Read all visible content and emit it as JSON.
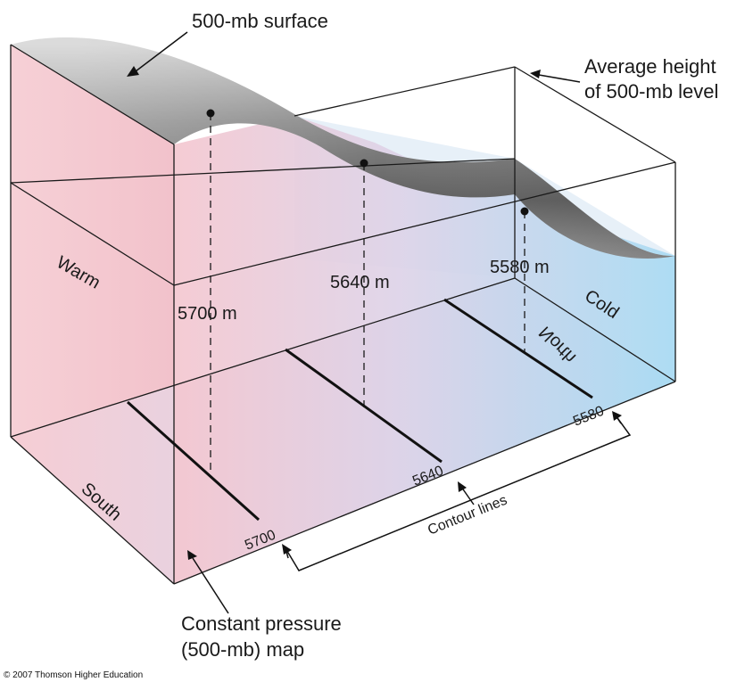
{
  "labels": {
    "surface": "500-mb surface",
    "avg_height_1": "Average height",
    "avg_height_2": "of 500-mb level",
    "map_1": "Constant pressure",
    "map_2": "(500-mb) map",
    "warm": "Warm",
    "cold": "Cold",
    "north": "North",
    "south": "South",
    "contour_lines": "Contour lines",
    "copyright": "© 2007 Thomson Higher Education"
  },
  "heights": [
    "5700 m",
    "5640 m",
    "5580 m"
  ],
  "contours": [
    "5700",
    "5640",
    "5580"
  ],
  "colors": {
    "warm": "#f2c4cc",
    "cold": "#a9dcf3",
    "surface_dark": "#565656",
    "surface_light": "#c8c8c8",
    "outline": "#1a1a1a"
  }
}
